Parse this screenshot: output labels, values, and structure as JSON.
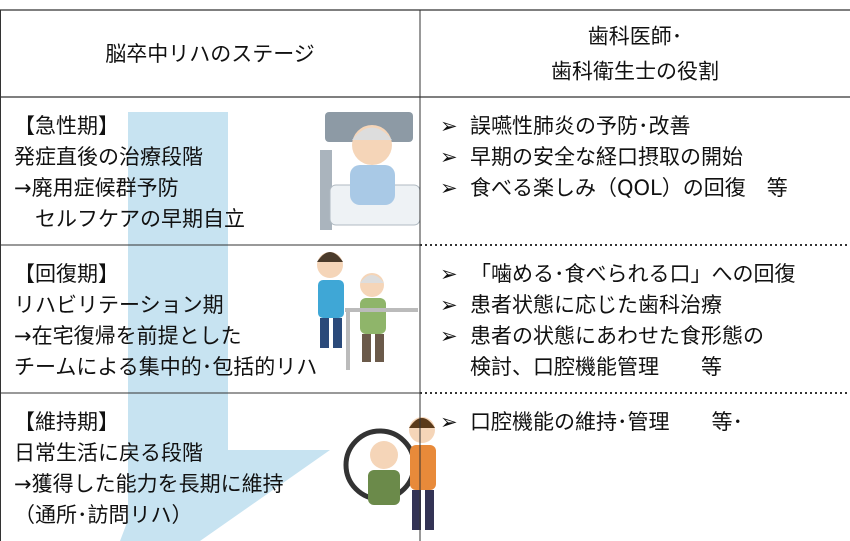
{
  "table": {
    "headers": [
      [
        "脳卒中リハのステージ"
      ],
      [
        "歯科医師･",
        "歯科衛生士の役割"
      ]
    ],
    "rows": [
      {
        "stage": [
          "【急性期】",
          "発症直後の治療段階",
          "→廃用症候群予防",
          "　セルフケアの早期自立"
        ],
        "roles": [
          [
            "誤嚥性肺炎の予防･改善"
          ],
          [
            "早期の安全な経口摂取の開始"
          ],
          [
            "食べる楽しみ（QOL）の回復　等"
          ]
        ]
      },
      {
        "stage": [
          "【回復期】",
          "リハビリテーション期",
          "→在宅復帰を前提とした",
          "チームによる集中的･包括的リハ"
        ],
        "roles": [
          [
            "「噛める･食べられる口」への回復"
          ],
          [
            "患者状態に応じた歯科治療"
          ],
          [
            "患者の状態にあわせた食形態の",
            "検討、口腔機能管理　　等"
          ]
        ]
      },
      {
        "stage": [
          "【維持期】",
          "日常生活に戻る段階",
          "→獲得した能力を長期に維持",
          "（通所･訪問リハ）"
        ],
        "roles": [
          [
            "口腔機能の維持･管理　　等･"
          ]
        ]
      }
    ]
  }
}
